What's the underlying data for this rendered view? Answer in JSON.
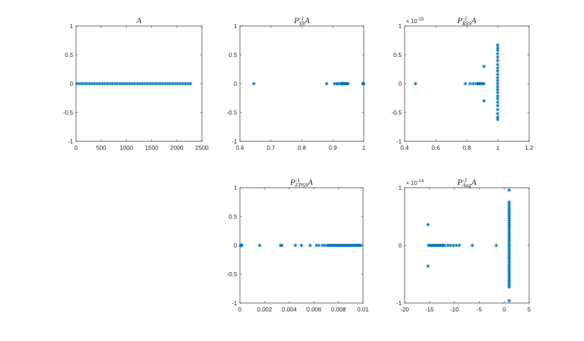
{
  "figure": {
    "background": "#ffffff",
    "marker_color": "#0072BD",
    "marker": "asterisk"
  },
  "chart_data": [
    {
      "id": "p1",
      "type": "scatter",
      "title_main": "A",
      "title_sup": "",
      "title_sub": "",
      "xlim": [
        0,
        2500
      ],
      "ylim": [
        -1,
        1
      ],
      "xticks": [
        0,
        500,
        1000,
        1500,
        2000,
        2500
      ],
      "xtick_labels": [
        "0",
        "500",
        "1000",
        "1500",
        "2000",
        "2500"
      ],
      "yticks": [
        -1,
        -0.5,
        0,
        0.5,
        1
      ],
      "ytick_labels": [
        "-1",
        "-0.5",
        "0",
        "0.5",
        "1"
      ],
      "exponent_label": "",
      "series": [
        {
          "ranges": [
            [
              20,
              2270,
              50
            ]
          ],
          "points": []
        }
      ]
    },
    {
      "id": "p2",
      "type": "scatter",
      "title_main": "A",
      "title_sup": "-1",
      "title_sub": "SS",
      "title_prefix": "P",
      "xlim": [
        0.6,
        1.0
      ],
      "ylim": [
        -1,
        1
      ],
      "xticks": [
        0.6,
        0.7,
        0.8,
        0.9,
        1.0
      ],
      "xtick_labels": [
        "0.6",
        "0.7",
        "0.8",
        "0.9",
        "1"
      ],
      "yticks": [
        -1,
        -0.5,
        0,
        0.5,
        1
      ],
      "ytick_labels": [
        "-1",
        "-0.5",
        "0",
        "0.5",
        "1"
      ],
      "exponent_label": "",
      "series": [
        {
          "ranges": [
            [
              0.925,
              0.95,
              0.003
            ]
          ],
          "points": [
            [
              0.645,
              0
            ],
            [
              0.88,
              0
            ],
            [
              0.905,
              0
            ],
            [
              0.912,
              0
            ],
            [
              0.918,
              0
            ],
            [
              0.997,
              0
            ],
            [
              0.999,
              0
            ],
            [
              1.0,
              0
            ]
          ]
        }
      ]
    },
    {
      "id": "p3",
      "type": "scatter",
      "title_main": "A",
      "title_sup": "-1",
      "title_sub": "RSS",
      "title_prefix": "P",
      "xlim": [
        0.4,
        1.2
      ],
      "ylim": [
        -1,
        1
      ],
      "xticks": [
        0.4,
        0.6,
        0.8,
        1.0,
        1.2
      ],
      "xtick_labels": [
        "0.4",
        "0.6",
        "0.8",
        "1",
        "1.2"
      ],
      "yticks": [
        -1,
        -0.5,
        0,
        0.5,
        1
      ],
      "ytick_labels": [
        "-1",
        "-0.5",
        "0",
        "0.5",
        "1"
      ],
      "exponent_label": "× 10",
      "exponent_value": "-15",
      "series": [
        {
          "ranges": [
            [
              0.86,
              0.91,
              0.007
            ]
          ],
          "points": [
            [
              0.47,
              0
            ],
            [
              0.79,
              0
            ],
            [
              0.82,
              0
            ],
            [
              0.84,
              0
            ],
            [
              0.91,
              0.3
            ],
            [
              0.91,
              -0.3
            ],
            [
              0.998,
              0.67
            ],
            [
              0.998,
              0.62
            ],
            [
              0.998,
              0.58
            ],
            [
              0.998,
              0.52
            ],
            [
              0.998,
              0.46
            ],
            [
              0.998,
              0.4
            ],
            [
              0.998,
              0.33
            ],
            [
              0.998,
              0.27
            ],
            [
              0.998,
              0.22
            ],
            [
              0.998,
              0.16
            ],
            [
              0.998,
              0.1
            ],
            [
              0.998,
              0.05
            ],
            [
              0.998,
              0.0
            ],
            [
              0.998,
              -0.05
            ],
            [
              0.998,
              -0.1
            ],
            [
              0.998,
              -0.15
            ],
            [
              0.998,
              -0.21
            ],
            [
              0.998,
              -0.26
            ],
            [
              0.998,
              -0.32
            ],
            [
              0.998,
              -0.38
            ],
            [
              0.998,
              -0.45
            ],
            [
              0.998,
              -0.52
            ],
            [
              0.998,
              -0.58
            ],
            [
              0.998,
              -0.62
            ]
          ]
        }
      ]
    },
    {
      "id": "p4",
      "type": "scatter",
      "title_main": "A",
      "title_sup": "-1",
      "title_sub": "FPSS",
      "title_prefix": "P",
      "xlim": [
        0,
        0.01
      ],
      "ylim": [
        -1,
        1
      ],
      "xticks": [
        0,
        0.002,
        0.004,
        0.006,
        0.008,
        0.01
      ],
      "xtick_labels": [
        "0",
        "0.002",
        "0.004",
        "0.006",
        "0.008",
        "0.01"
      ],
      "yticks": [
        -1,
        -0.5,
        0,
        0.5,
        1
      ],
      "ytick_labels": [
        "-1",
        "-0.5",
        "0",
        "0.5",
        "1"
      ],
      "exponent_label": "",
      "series": [
        {
          "ranges": [
            [
              0.0072,
              0.0099,
              0.00012
            ]
          ],
          "points": [
            [
              5e-05,
              0
            ],
            [
              0.0001,
              0
            ],
            [
              0.00015,
              0
            ],
            [
              0.0016,
              0
            ],
            [
              0.0033,
              0
            ],
            [
              0.0034,
              0
            ],
            [
              0.0045,
              0
            ],
            [
              0.005,
              0
            ],
            [
              0.0057,
              0
            ],
            [
              0.0062,
              0
            ],
            [
              0.0064,
              0
            ],
            [
              0.0067,
              0
            ],
            [
              0.0069,
              0
            ],
            [
              0.0071,
              0
            ]
          ]
        }
      ]
    },
    {
      "id": "p5",
      "type": "scatter",
      "title_main": "A",
      "title_sup": "-1",
      "title_sub": "Aug",
      "title_prefix": "P",
      "xlim": [
        -20,
        5
      ],
      "ylim": [
        -1,
        1
      ],
      "xticks": [
        -20,
        -15,
        -10,
        -5,
        0,
        5
      ],
      "xtick_labels": [
        "-20",
        "-15",
        "-10",
        "-5",
        "0",
        "5"
      ],
      "yticks": [
        -1,
        0,
        1
      ],
      "ytick_labels": [
        "-1",
        "0",
        "1"
      ],
      "exponent_label": "× 10",
      "exponent_value": "-14",
      "series": [
        {
          "ranges": [
            [
              -15.2,
              -11.8,
              0.25
            ]
          ],
          "points": [
            [
              -15.3,
              0.36
            ],
            [
              -15.3,
              -0.36
            ],
            [
              -11.3,
              0
            ],
            [
              -10.8,
              0
            ],
            [
              -10.2,
              0
            ],
            [
              -9.6,
              0
            ],
            [
              -9.0,
              0
            ],
            [
              -6.4,
              0
            ],
            [
              -1.6,
              0
            ],
            [
              1.0,
              0.96
            ],
            [
              1.0,
              -0.96
            ]
          ],
          "column": {
            "x": 1.0,
            "from": -0.72,
            "to": 0.75,
            "step": 0.035
          }
        }
      ]
    }
  ]
}
